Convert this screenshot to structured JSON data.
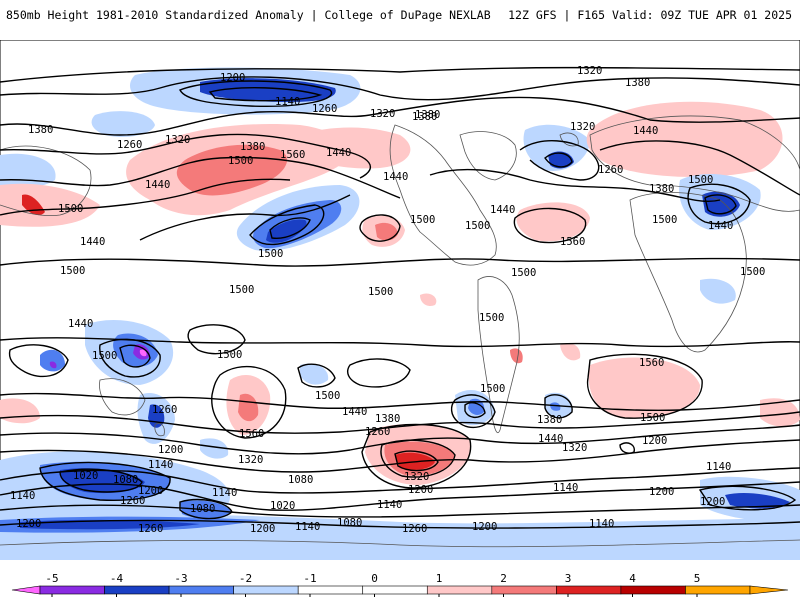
{
  "header": {
    "left": "850mb Height 1981-2010 Standardized Anomaly | College of DuPage NEXLAB",
    "right": "12Z GFS | F165 Valid: 09Z TUE APR 01 2025"
  },
  "colors": {
    "neg5": "#ff66ff",
    "neg4": "#8a2be2",
    "neg3": "#1a3fc4",
    "neg2": "#4f7ef0",
    "neg1": "#bcd7ff",
    "pos1": "#ffc8c8",
    "pos2": "#f47a7a",
    "pos3": "#dd2222",
    "pos4": "#b80000",
    "pos5": "#ffa500",
    "land": "#555555",
    "contour": "#000000"
  },
  "colorbar": {
    "ticks": [
      "-5",
      "-4",
      "-3",
      "-2",
      "-1",
      "0",
      "1",
      "2",
      "3",
      "4",
      "5"
    ]
  },
  "contour_labels": {
    "l1320a": "1320",
    "l1380a": "1380",
    "l1200a": "1200",
    "l1140a": "1140",
    "l1260a": "1260",
    "l1320b": "1320",
    "l1380b": "1380",
    "l1380c": "1380",
    "l1260b": "1260",
    "l1320c": "1320",
    "l1380d": "1380",
    "l1500a": "1500",
    "l1560a": "1560",
    "l1440a": "1440",
    "l1440b": "1440",
    "l1500b": "1500",
    "l1440c": "1440",
    "l1500c": "1500",
    "l1500d": "1500",
    "l1440d": "1440",
    "l1500e": "1500",
    "l1440e": "1440",
    "l1380e": "1380",
    "l1500f": "1500",
    "l1320d": "1320",
    "l1440f": "1440",
    "l1260c": "1260",
    "l1500g": "1500",
    "l1560b": "1560",
    "l1380f": "1380",
    "l1440g": "1440",
    "l1500h": "1500",
    "l1440h": "1440",
    "l1500i": "1500",
    "l1500j": "1500",
    "l1500k": "1500",
    "l1500l": "1500",
    "l1500m": "1500",
    "l1500n": "1500",
    "l1560c": "1560",
    "l1560d": "1560",
    "l1500o": "1500",
    "l1440i": "1440",
    "l1380g": "1380",
    "l1320e": "1320",
    "l1260d": "1260",
    "l1200b": "1200",
    "l1140b": "1140",
    "l1500p": "1500",
    "l1380h": "1380",
    "l1440j": "1440",
    "l1260e": "1260",
    "l1200c": "1200",
    "l1320f": "1320",
    "l1200d": "1200",
    "l1140c": "1140",
    "l1080a": "1080",
    "l1020a": "1020",
    "l1080b": "1080",
    "l1020b": "1020",
    "l1140d": "1140",
    "l1080c": "1080",
    "l1200e": "1200",
    "l1140e": "1140",
    "l1260f": "1260",
    "l1200f": "1200",
    "l1140f": "1140",
    "l1080d": "1080",
    "l1260g": "1260",
    "l1200g": "1200",
    "l1140g": "1140",
    "l1200h": "1200",
    "l1140h": "1140",
    "l1320g": "1320",
    "l1200i": "1200",
    "l1140i": "1140",
    "l1200j": "1200",
    "l1560e": "1560",
    "l1500q": "1500",
    "l1500r": "1500"
  }
}
